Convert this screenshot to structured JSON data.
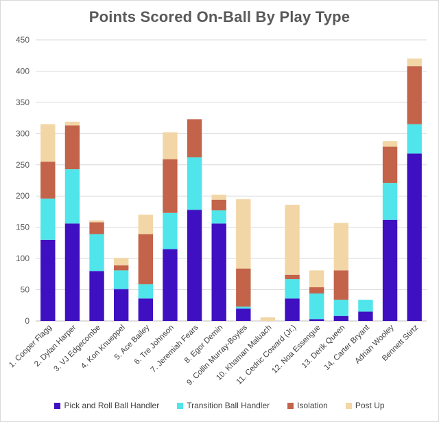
{
  "chart_data": {
    "type": "bar",
    "stacked": true,
    "title": "Points Scored On-Ball By Play Type",
    "xlabel": "",
    "ylabel": "",
    "ylim": [
      0,
      450
    ],
    "yticks": [
      "0",
      "50",
      "100",
      "150",
      "200",
      "250",
      "300",
      "350",
      "400",
      "450"
    ],
    "grid": true,
    "legend_position": "bottom",
    "categories": [
      "1. Cooper Flagg",
      "2. Dylan Harper",
      "3. VJ Edgecombe",
      "4. Kon Knueppel",
      "5. Ace Bailey",
      "6. Tre Johnson",
      "7. Jeremiah Fears",
      "8. Egor Demin",
      "9. Collin Murray-Boyles",
      "10. Khaman Maluach",
      "11. Cedric Coward (Jr.)",
      "12. Noa Essengue",
      "13. Derik Queen",
      "14. Carter Bryant",
      "Adrian Wooley",
      "Bennett Stirtz"
    ],
    "series": [
      {
        "name": "Pick and Roll Ball Handler",
        "color": "#3f10c2",
        "values": [
          130,
          156,
          80,
          51,
          36,
          115,
          178,
          156,
          20,
          0,
          36,
          3,
          8,
          15,
          162,
          268
        ]
      },
      {
        "name": "Transition Ball Handler",
        "color": "#4fe5ea",
        "values": [
          66,
          87,
          59,
          30,
          23,
          58,
          84,
          21,
          3,
          0,
          31,
          41,
          26,
          19,
          59,
          47
        ]
      },
      {
        "name": "Isolation",
        "color": "#c2634a",
        "values": [
          59,
          70,
          19,
          8,
          80,
          86,
          61,
          17,
          61,
          0,
          7,
          10,
          47,
          0,
          58,
          93
        ]
      },
      {
        "name": "Post Up",
        "color": "#f2d6a6",
        "values": [
          60,
          6,
          3,
          12,
          31,
          43,
          0,
          8,
          111,
          6,
          112,
          27,
          76,
          0,
          9,
          12
        ]
      }
    ]
  }
}
